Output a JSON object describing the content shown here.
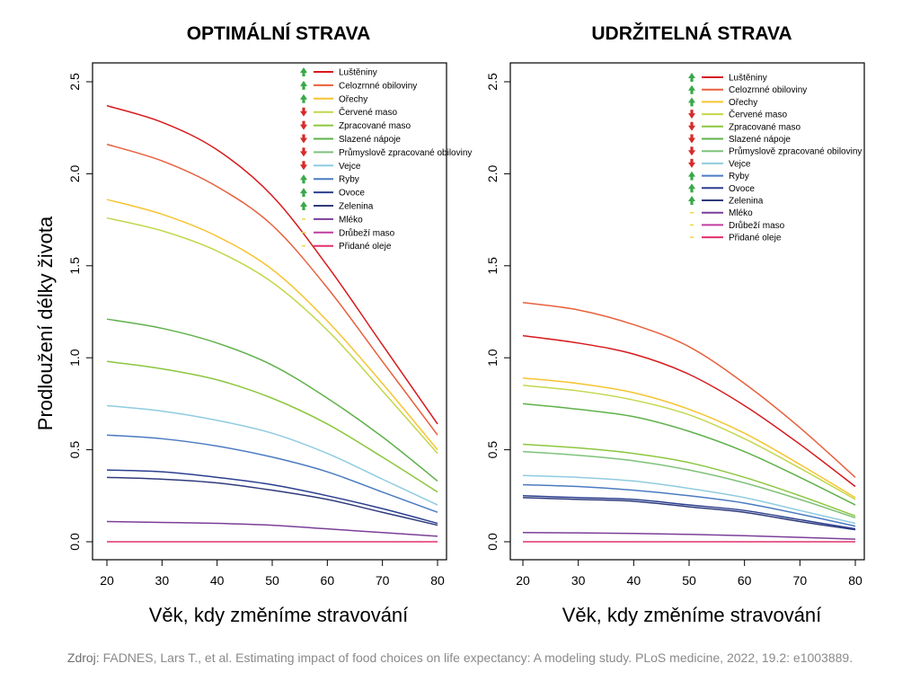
{
  "ylabel": "Prodloužení délky života",
  "source": {
    "prefix": "Zdroj:",
    "text": "FADNES, Lars T., et al. Estimating impact of food choices on life expectancy: A modeling study. PLoS medicine, 2022, 19.2: e1003889."
  },
  "colors": {
    "Luštěniny": "#d7191c",
    "Celozrnné obiloviny": "#e8603c",
    "Ořechy": "#f6c431",
    "Červené maso": "#c4d64b",
    "Zpracované maso": "#8cc63e",
    "Slazené nápoje": "#5fb14a",
    "Průmyslově zpracované obiloviny": "#7fc27a",
    "Vejce": "#8fcbe0",
    "Ryby": "#4a7bc0",
    "Ovoce": "#2b3f8f",
    "Zelenina": "#2f3b7c",
    "Mléko": "#7b3f98",
    "Drůbeží maso": "#c03ca0",
    "Přidané oleje": "#e0306c",
    "arrow_up": "#3aa84a",
    "arrow_down": "#d62b2b",
    "neutral": "#e8d94a"
  },
  "chart_data": [
    {
      "type": "line",
      "title": "OPTIMÁLNÍ STRAVA",
      "xlabel": "Věk, kdy změníme stravování",
      "xlim": [
        20,
        80
      ],
      "ylim": [
        0,
        2.5
      ],
      "xticks": [
        "20",
        "30",
        "40",
        "50",
        "60",
        "70",
        "80"
      ],
      "yticks": [
        "0.0",
        "0.5",
        "1.0",
        "1.5",
        "2.0",
        "2.5"
      ],
      "x": [
        20,
        30,
        40,
        50,
        60,
        70,
        80
      ],
      "legend": [
        {
          "name": "Luštěniny",
          "marker": "up"
        },
        {
          "name": "Celozrnné obiloviny",
          "marker": "up"
        },
        {
          "name": "Ořechy",
          "marker": "up"
        },
        {
          "name": "Červené maso",
          "marker": "down"
        },
        {
          "name": "Zpracované maso",
          "marker": "down"
        },
        {
          "name": "Slazené nápoje",
          "marker": "down"
        },
        {
          "name": "Průmyslově zpracované obiloviny",
          "marker": "down"
        },
        {
          "name": "Vejce",
          "marker": "down"
        },
        {
          "name": "Ryby",
          "marker": "up"
        },
        {
          "name": "Ovoce",
          "marker": "up"
        },
        {
          "name": "Zelenina",
          "marker": "up"
        },
        {
          "name": "Mléko",
          "marker": "neutral"
        },
        {
          "name": "Drůbeží maso",
          "marker": "neutral"
        },
        {
          "name": "Přidané oleje",
          "marker": "neutral"
        }
      ],
      "series": [
        {
          "name": "Luštěniny",
          "values": [
            2.37,
            2.28,
            2.13,
            1.88,
            1.5,
            1.07,
            0.64
          ]
        },
        {
          "name": "Celozrnné obiloviny",
          "values": [
            2.16,
            2.07,
            1.93,
            1.72,
            1.38,
            0.98,
            0.58
          ]
        },
        {
          "name": "Ořechy",
          "values": [
            1.86,
            1.78,
            1.66,
            1.48,
            1.2,
            0.86,
            0.5
          ]
        },
        {
          "name": "Červené maso",
          "values": [
            1.76,
            1.69,
            1.58,
            1.41,
            1.15,
            0.82,
            0.48
          ]
        },
        {
          "name": "Slazené nápoje",
          "values": [
            1.21,
            1.16,
            1.08,
            0.96,
            0.78,
            0.57,
            0.33
          ]
        },
        {
          "name": "Zpracované maso",
          "values": [
            0.98,
            0.94,
            0.88,
            0.78,
            0.64,
            0.46,
            0.27
          ]
        },
        {
          "name": "Vejce",
          "values": [
            0.74,
            0.71,
            0.66,
            0.59,
            0.48,
            0.34,
            0.2
          ]
        },
        {
          "name": "Ryby",
          "values": [
            0.58,
            0.56,
            0.52,
            0.46,
            0.38,
            0.27,
            0.16
          ]
        },
        {
          "name": "Ovoce",
          "values": [
            0.39,
            0.38,
            0.35,
            0.31,
            0.25,
            0.18,
            0.1
          ]
        },
        {
          "name": "Zelenina",
          "values": [
            0.35,
            0.34,
            0.32,
            0.28,
            0.23,
            0.16,
            0.09
          ]
        },
        {
          "name": "Mléko",
          "values": [
            0.11,
            0.105,
            0.1,
            0.09,
            0.07,
            0.05,
            0.03
          ]
        },
        {
          "name": "Přidané oleje",
          "values": [
            0.0,
            0.0,
            0.0,
            0.0,
            0.0,
            0.0,
            0.0
          ]
        }
      ]
    },
    {
      "type": "line",
      "title": "UDRŽITELNÁ STRAVA",
      "xlabel": "Věk, kdy změníme stravování",
      "xlim": [
        20,
        80
      ],
      "ylim": [
        0,
        2.5
      ],
      "xticks": [
        "20",
        "30",
        "40",
        "50",
        "60",
        "70",
        "80"
      ],
      "yticks": [
        "0.0",
        "0.5",
        "1.0",
        "1.5",
        "2.0",
        "2.5"
      ],
      "x": [
        20,
        30,
        40,
        50,
        60,
        70,
        80
      ],
      "legend": [
        {
          "name": "Luštěniny",
          "marker": "up"
        },
        {
          "name": "Celozrnné obiloviny",
          "marker": "up"
        },
        {
          "name": "Ořechy",
          "marker": "up"
        },
        {
          "name": "Červené maso",
          "marker": "down"
        },
        {
          "name": "Zpracované maso",
          "marker": "down"
        },
        {
          "name": "Slazené nápoje",
          "marker": "down"
        },
        {
          "name": "Průmyslově zpracované obiloviny",
          "marker": "down"
        },
        {
          "name": "Vejce",
          "marker": "down"
        },
        {
          "name": "Ryby",
          "marker": "up"
        },
        {
          "name": "Ovoce",
          "marker": "up"
        },
        {
          "name": "Zelenina",
          "marker": "up"
        },
        {
          "name": "Mléko",
          "marker": "neutral"
        },
        {
          "name": "Drůbeží maso",
          "marker": "neutral"
        },
        {
          "name": "Přidané oleje",
          "marker": "neutral"
        }
      ],
      "series": [
        {
          "name": "Celozrnné obiloviny",
          "values": [
            1.3,
            1.26,
            1.18,
            1.06,
            0.86,
            0.62,
            0.35
          ]
        },
        {
          "name": "Luštěniny",
          "values": [
            1.12,
            1.08,
            1.02,
            0.91,
            0.74,
            0.53,
            0.3
          ]
        },
        {
          "name": "Ořechy",
          "values": [
            0.89,
            0.86,
            0.81,
            0.72,
            0.59,
            0.42,
            0.24
          ]
        },
        {
          "name": "Červené maso",
          "values": [
            0.85,
            0.82,
            0.77,
            0.69,
            0.56,
            0.4,
            0.23
          ]
        },
        {
          "name": "Slazené nápoje",
          "values": [
            0.75,
            0.72,
            0.68,
            0.6,
            0.49,
            0.35,
            0.2
          ]
        },
        {
          "name": "Zpracované maso",
          "values": [
            0.53,
            0.51,
            0.48,
            0.43,
            0.35,
            0.25,
            0.14
          ]
        },
        {
          "name": "Průmyslově zpracované obiloviny",
          "values": [
            0.49,
            0.47,
            0.44,
            0.39,
            0.32,
            0.23,
            0.13
          ]
        },
        {
          "name": "Vejce",
          "values": [
            0.36,
            0.35,
            0.33,
            0.29,
            0.24,
            0.17,
            0.1
          ]
        },
        {
          "name": "Ryby",
          "values": [
            0.31,
            0.3,
            0.28,
            0.25,
            0.21,
            0.15,
            0.085
          ]
        },
        {
          "name": "Ovoce",
          "values": [
            0.25,
            0.24,
            0.23,
            0.2,
            0.17,
            0.12,
            0.07
          ]
        },
        {
          "name": "Zelenina",
          "values": [
            0.24,
            0.23,
            0.22,
            0.19,
            0.16,
            0.11,
            0.065
          ]
        },
        {
          "name": "Mléko",
          "values": [
            0.05,
            0.048,
            0.045,
            0.04,
            0.033,
            0.024,
            0.014
          ]
        },
        {
          "name": "Přidané oleje",
          "values": [
            0.0,
            0.0,
            0.0,
            0.0,
            0.0,
            0.0,
            0.0
          ]
        }
      ]
    }
  ]
}
